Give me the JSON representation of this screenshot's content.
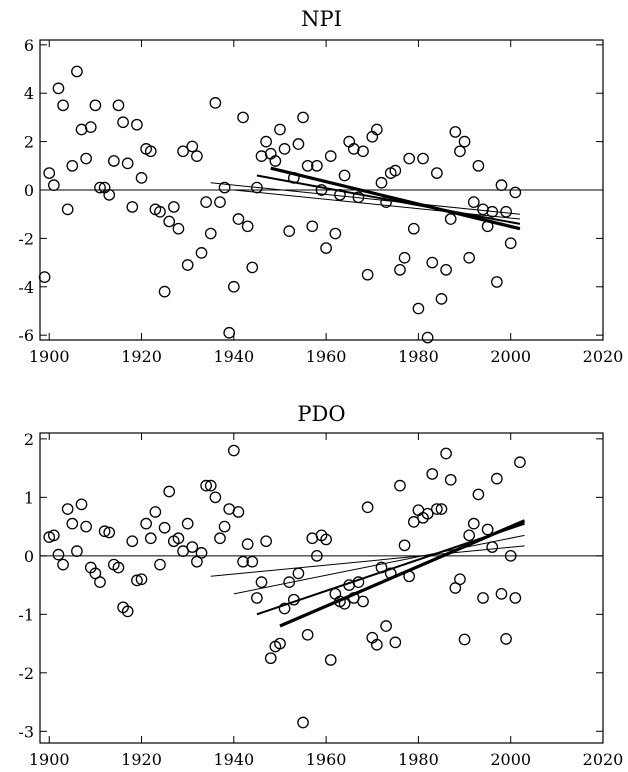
{
  "chart_data": [
    {
      "type": "scatter",
      "title": "NPI",
      "xlabel": "",
      "ylabel": "",
      "xlim": [
        1898,
        2020
      ],
      "ylim": [
        -6.2,
        6.2
      ],
      "xticks": [
        1900,
        1920,
        1940,
        1960,
        1980,
        2000,
        2020
      ],
      "yticks": [
        -6,
        -4,
        -2,
        0,
        2,
        4,
        6
      ],
      "grid": false,
      "zero_line": true,
      "series": [
        {
          "marker": "open-circle",
          "points": [
            [
              1899,
              -3.6
            ],
            [
              1900,
              0.7
            ],
            [
              1901,
              0.2
            ],
            [
              1902,
              4.2
            ],
            [
              1903,
              3.5
            ],
            [
              1904,
              -0.8
            ],
            [
              1905,
              1.0
            ],
            [
              1906,
              4.9
            ],
            [
              1907,
              2.5
            ],
            [
              1908,
              1.3
            ],
            [
              1909,
              2.6
            ],
            [
              1910,
              3.5
            ],
            [
              1911,
              0.1
            ],
            [
              1912,
              0.1
            ],
            [
              1913,
              -0.2
            ],
            [
              1914,
              1.2
            ],
            [
              1915,
              3.5
            ],
            [
              1916,
              2.8
            ],
            [
              1917,
              1.1
            ],
            [
              1918,
              -0.7
            ],
            [
              1919,
              2.7
            ],
            [
              1920,
              0.5
            ],
            [
              1921,
              1.7
            ],
            [
              1922,
              1.6
            ],
            [
              1923,
              -0.8
            ],
            [
              1924,
              -0.9
            ],
            [
              1925,
              -4.2
            ],
            [
              1926,
              -1.3
            ],
            [
              1927,
              -0.7
            ],
            [
              1928,
              -1.6
            ],
            [
              1929,
              1.6
            ],
            [
              1930,
              -3.1
            ],
            [
              1931,
              1.8
            ],
            [
              1932,
              1.4
            ],
            [
              1933,
              -2.6
            ],
            [
              1934,
              -0.5
            ],
            [
              1935,
              -1.8
            ],
            [
              1936,
              3.6
            ],
            [
              1937,
              -0.5
            ],
            [
              1938,
              0.1
            ],
            [
              1939,
              -5.9
            ],
            [
              1940,
              -4.0
            ],
            [
              1941,
              -1.2
            ],
            [
              1942,
              3.0
            ],
            [
              1943,
              -1.5
            ],
            [
              1944,
              -3.2
            ],
            [
              1945,
              0.1
            ],
            [
              1946,
              1.4
            ],
            [
              1947,
              2.0
            ],
            [
              1948,
              1.5
            ],
            [
              1949,
              1.2
            ],
            [
              1950,
              2.5
            ],
            [
              1951,
              1.7
            ],
            [
              1952,
              -1.7
            ],
            [
              1953,
              0.5
            ],
            [
              1954,
              1.9
            ],
            [
              1955,
              3.0
            ],
            [
              1956,
              1.0
            ],
            [
              1957,
              -1.5
            ],
            [
              1958,
              1.0
            ],
            [
              1959,
              0.0
            ],
            [
              1960,
              -2.4
            ],
            [
              1961,
              1.4
            ],
            [
              1962,
              -1.8
            ],
            [
              1963,
              -0.2
            ],
            [
              1964,
              0.6
            ],
            [
              1965,
              2.0
            ],
            [
              1966,
              1.7
            ],
            [
              1967,
              -0.3
            ],
            [
              1968,
              1.6
            ],
            [
              1969,
              -3.5
            ],
            [
              1970,
              2.2
            ],
            [
              1971,
              2.5
            ],
            [
              1972,
              0.3
            ],
            [
              1973,
              -0.5
            ],
            [
              1974,
              0.7
            ],
            [
              1975,
              0.8
            ],
            [
              1976,
              -3.3
            ],
            [
              1977,
              -2.8
            ],
            [
              1978,
              1.3
            ],
            [
              1979,
              -1.6
            ],
            [
              1980,
              -4.9
            ],
            [
              1981,
              1.3
            ],
            [
              1982,
              -6.1
            ],
            [
              1983,
              -3.0
            ],
            [
              1984,
              0.7
            ],
            [
              1985,
              -4.5
            ],
            [
              1986,
              -3.3
            ],
            [
              1987,
              -1.2
            ],
            [
              1988,
              2.4
            ],
            [
              1989,
              1.6
            ],
            [
              1990,
              2.0
            ],
            [
              1991,
              -2.8
            ],
            [
              1992,
              -0.5
            ],
            [
              1993,
              1.0
            ],
            [
              1994,
              -0.8
            ],
            [
              1995,
              -1.5
            ],
            [
              1996,
              -0.9
            ],
            [
              1997,
              -3.8
            ],
            [
              1998,
              0.2
            ],
            [
              1999,
              -0.9
            ],
            [
              2000,
              -2.2
            ],
            [
              2001,
              -0.1
            ]
          ]
        }
      ],
      "trend_lines": [
        {
          "from": [
            1935,
            0.3
          ],
          "to": [
            2002,
            -1.0
          ],
          "weight": "thin"
        },
        {
          "from": [
            1940,
            0.0
          ],
          "to": [
            2002,
            -1.2
          ],
          "weight": "thin"
        },
        {
          "from": [
            1945,
            0.6
          ],
          "to": [
            2002,
            -1.4
          ],
          "weight": "medium"
        },
        {
          "from": [
            1948,
            0.9
          ],
          "to": [
            2002,
            -1.6
          ],
          "weight": "thick"
        }
      ]
    },
    {
      "type": "scatter",
      "title": "PDO",
      "xlabel": "",
      "ylabel": "",
      "xlim": [
        1898,
        2020
      ],
      "ylim": [
        -3.2,
        2.1
      ],
      "xticks": [
        1900,
        1920,
        1940,
        1960,
        1980,
        2000,
        2020
      ],
      "yticks": [
        -3,
        -2,
        -1,
        0,
        1,
        2
      ],
      "grid": false,
      "zero_line": true,
      "series": [
        {
          "marker": "open-circle",
          "points": [
            [
              1900,
              0.32
            ],
            [
              1901,
              0.35
            ],
            [
              1902,
              0.02
            ],
            [
              1903,
              -0.15
            ],
            [
              1904,
              0.8
            ],
            [
              1905,
              0.55
            ],
            [
              1906,
              0.08
            ],
            [
              1907,
              0.88
            ],
            [
              1908,
              0.5
            ],
            [
              1909,
              -0.2
            ],
            [
              1910,
              -0.3
            ],
            [
              1911,
              -0.45
            ],
            [
              1912,
              0.42
            ],
            [
              1913,
              0.4
            ],
            [
              1914,
              -0.15
            ],
            [
              1915,
              -0.2
            ],
            [
              1916,
              -0.88
            ],
            [
              1917,
              -0.95
            ],
            [
              1918,
              0.25
            ],
            [
              1919,
              -0.42
            ],
            [
              1920,
              -0.4
            ],
            [
              1921,
              0.55
            ],
            [
              1922,
              0.3
            ],
            [
              1923,
              0.75
            ],
            [
              1924,
              -0.15
            ],
            [
              1925,
              0.48
            ],
            [
              1926,
              1.1
            ],
            [
              1927,
              0.25
            ],
            [
              1928,
              0.3
            ],
            [
              1929,
              0.08
            ],
            [
              1930,
              0.55
            ],
            [
              1931,
              0.15
            ],
            [
              1932,
              -0.1
            ],
            [
              1933,
              0.05
            ],
            [
              1934,
              1.2
            ],
            [
              1935,
              1.2
            ],
            [
              1936,
              1.0
            ],
            [
              1937,
              0.3
            ],
            [
              1938,
              0.5
            ],
            [
              1939,
              0.8
            ],
            [
              1940,
              1.8
            ],
            [
              1941,
              0.75
            ],
            [
              1942,
              -0.1
            ],
            [
              1943,
              0.2
            ],
            [
              1944,
              -0.1
            ],
            [
              1945,
              -0.72
            ],
            [
              1946,
              -0.45
            ],
            [
              1947,
              0.25
            ],
            [
              1948,
              -1.75
            ],
            [
              1949,
              -1.55
            ],
            [
              1950,
              -1.5
            ],
            [
              1951,
              -0.9
            ],
            [
              1952,
              -0.45
            ],
            [
              1953,
              -0.75
            ],
            [
              1954,
              -0.3
            ],
            [
              1955,
              -2.85
            ],
            [
              1956,
              -1.35
            ],
            [
              1957,
              0.3
            ],
            [
              1958,
              0.0
            ],
            [
              1959,
              0.35
            ],
            [
              1960,
              0.28
            ],
            [
              1961,
              -1.78
            ],
            [
              1962,
              -0.65
            ],
            [
              1963,
              -0.78
            ],
            [
              1964,
              -0.82
            ],
            [
              1965,
              -0.5
            ],
            [
              1966,
              -0.72
            ],
            [
              1967,
              -0.45
            ],
            [
              1968,
              -0.78
            ],
            [
              1969,
              0.83
            ],
            [
              1970,
              -1.4
            ],
            [
              1971,
              -1.52
            ],
            [
              1972,
              -0.2
            ],
            [
              1973,
              -1.2
            ],
            [
              1974,
              -0.3
            ],
            [
              1975,
              -1.48
            ],
            [
              1976,
              1.2
            ],
            [
              1977,
              0.18
            ],
            [
              1978,
              -0.35
            ],
            [
              1979,
              0.58
            ],
            [
              1980,
              0.78
            ],
            [
              1981,
              0.65
            ],
            [
              1982,
              0.72
            ],
            [
              1983,
              1.4
            ],
            [
              1984,
              0.8
            ],
            [
              1985,
              0.8
            ],
            [
              1986,
              1.75
            ],
            [
              1987,
              1.3
            ],
            [
              1988,
              -0.55
            ],
            [
              1989,
              -0.4
            ],
            [
              1990,
              -1.43
            ],
            [
              1991,
              0.35
            ],
            [
              1992,
              0.55
            ],
            [
              1993,
              1.05
            ],
            [
              1994,
              -0.72
            ],
            [
              1995,
              0.45
            ],
            [
              1996,
              0.15
            ],
            [
              1997,
              1.32
            ],
            [
              1998,
              -0.65
            ],
            [
              1999,
              -1.42
            ],
            [
              2000,
              0.0
            ],
            [
              2001,
              -0.72
            ],
            [
              2002,
              1.6
            ]
          ]
        }
      ],
      "trend_lines": [
        {
          "from": [
            1935,
            -0.35
          ],
          "to": [
            2003,
            0.17
          ],
          "weight": "thin"
        },
        {
          "from": [
            1940,
            -0.65
          ],
          "to": [
            2003,
            0.35
          ],
          "weight": "thin"
        },
        {
          "from": [
            1945,
            -1.0
          ],
          "to": [
            2003,
            0.55
          ],
          "weight": "medium"
        },
        {
          "from": [
            1950,
            -1.2
          ],
          "to": [
            2003,
            0.6
          ],
          "weight": "thick"
        }
      ]
    }
  ]
}
